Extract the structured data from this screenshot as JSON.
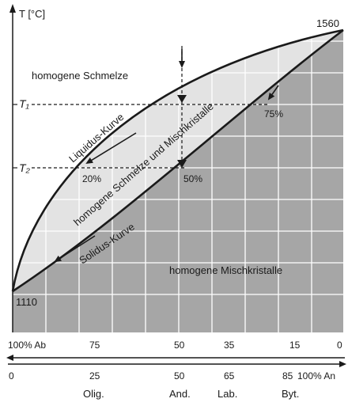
{
  "axis": {
    "y_label": "T [°C]",
    "t1": "T₁",
    "t2": "T₂",
    "top_value": "1560",
    "bottom_value": "1110"
  },
  "regions": {
    "melt": "homogene Schmelze",
    "two_phase": "homogene Schmelze und Mischkristalle",
    "solid": "homogene Mischkristalle"
  },
  "curves": {
    "liquidus": "Liquidus-Kurve",
    "solidus": "Solidus-Kurve"
  },
  "markers": {
    "p20": "20%",
    "p50": "50%",
    "p75": "75%"
  },
  "scale_ab": {
    "label0": "100% Ab",
    "t75": "75",
    "t50": "50",
    "t35": "35",
    "t15": "15",
    "t0": "0"
  },
  "scale_an": {
    "t0": "0",
    "t25": "25",
    "t50": "50",
    "t65": "65",
    "t85": "85",
    "end": "100% An"
  },
  "minerals": {
    "olig": "Olig.",
    "and": "And.",
    "lab": "Lab.",
    "byt": "Byt."
  },
  "colors": {
    "solid_fill": "#a6a6a6",
    "lens_fill": "#e3e3e3",
    "grid": "#ffffff",
    "curve": "#1a1a1a"
  }
}
